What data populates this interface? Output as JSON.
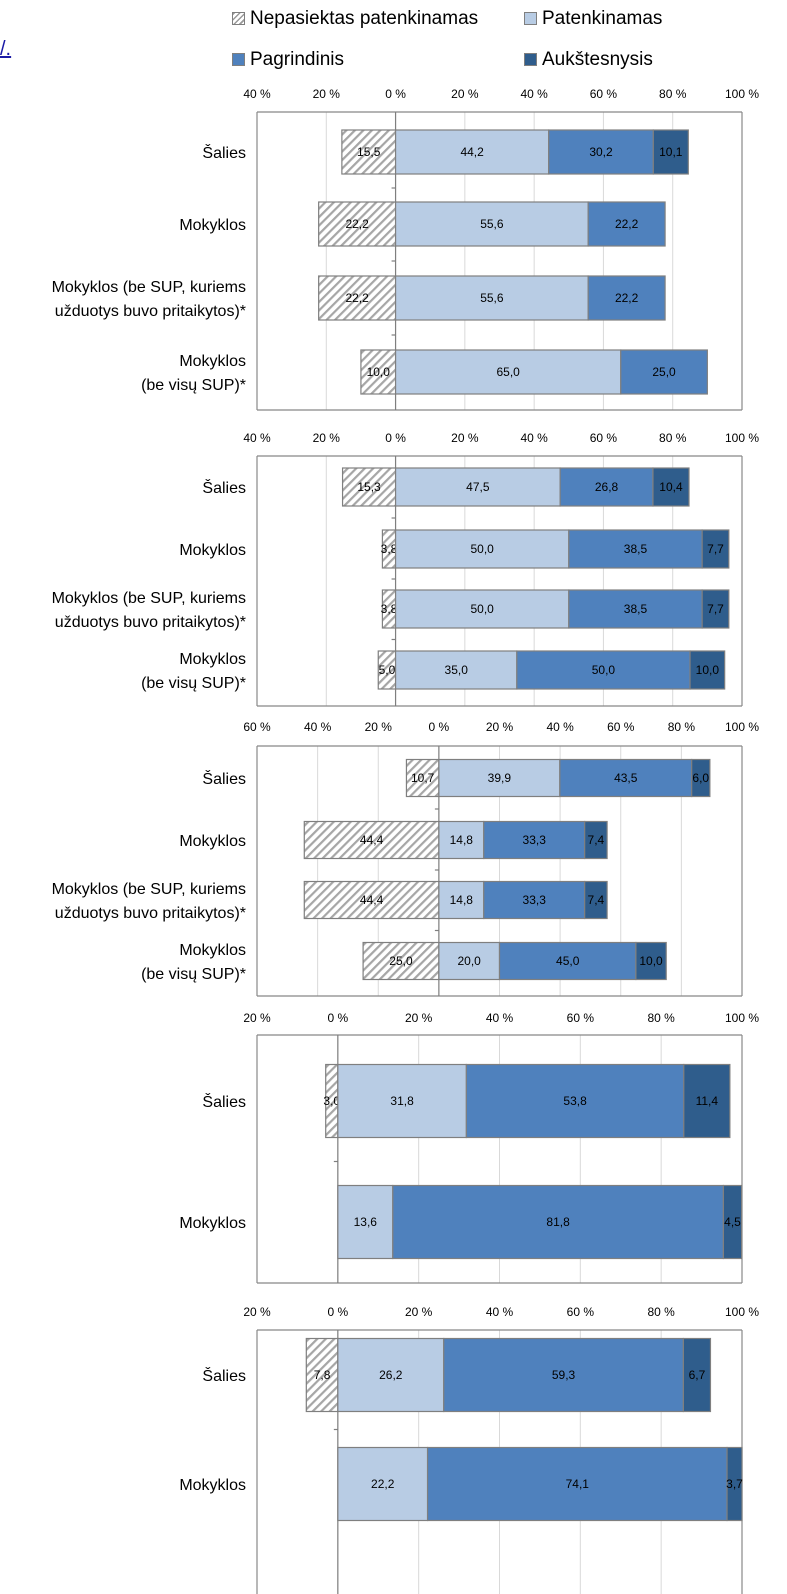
{
  "link_text": "/.",
  "legend": {
    "placement": "top",
    "items": [
      {
        "key": "nep",
        "label": "Nepasiektas patenkinamas",
        "color": "hatched"
      },
      {
        "key": "pat",
        "label": "Patenkinamas",
        "color": "#b8cce4"
      },
      {
        "key": "pag",
        "label": "Pagrindinis",
        "color": "#4f81bd"
      },
      {
        "key": "auk",
        "label": "Aukštesnysis",
        "color": "#2f5d8c"
      }
    ]
  },
  "chart_data": [
    {
      "type": "bar",
      "orientation": "horizontal-stacked-diverging",
      "xlim": [
        -40,
        100
      ],
      "xticks": [
        -40,
        -20,
        0,
        20,
        40,
        60,
        80,
        100
      ],
      "tick_labels": [
        "40 %",
        "20 %",
        "0 %",
        "20 %",
        "40 %",
        "60 %",
        "80 %",
        "100 %"
      ],
      "grid": true,
      "categories": [
        [
          "Šalies"
        ],
        [
          "Mokyklos"
        ],
        [
          "Mokyklos (be SUP, kuriems",
          "užduotys buvo pritaikytos)*"
        ],
        [
          "Mokyklos",
          "(be visų SUP)*"
        ]
      ],
      "series": [
        {
          "name": "Nepasiektas patenkinamas",
          "values": [
            15.5,
            22.2,
            22.2,
            10.0
          ],
          "labels": [
            "15,5",
            "22,2",
            "22,2",
            "10,0"
          ]
        },
        {
          "name": "Patenkinamas",
          "values": [
            44.2,
            55.6,
            55.6,
            65.0
          ],
          "labels": [
            "44,2",
            "55,6",
            "55,6",
            "65,0"
          ]
        },
        {
          "name": "Pagrindinis",
          "values": [
            30.2,
            22.2,
            22.2,
            25.0
          ],
          "labels": [
            "30,2",
            "22,2",
            "22,2",
            "25,0"
          ]
        },
        {
          "name": "Aukštesnysis",
          "values": [
            10.1,
            0,
            0,
            0
          ],
          "labels": [
            "10,1",
            "",
            "",
            ""
          ]
        }
      ]
    },
    {
      "type": "bar",
      "orientation": "horizontal-stacked-diverging",
      "xlim": [
        -40,
        100
      ],
      "xticks": [
        -40,
        -20,
        0,
        20,
        40,
        60,
        80,
        100
      ],
      "tick_labels": [
        "40 %",
        "20 %",
        "0 %",
        "20 %",
        "40 %",
        "60 %",
        "80 %",
        "100 %"
      ],
      "grid": true,
      "categories": [
        [
          "Šalies"
        ],
        [
          "Mokyklos"
        ],
        [
          "Mokyklos (be SUP, kuriems",
          "užduotys buvo pritaikytos)*"
        ],
        [
          "Mokyklos",
          "(be visų SUP)*"
        ]
      ],
      "series": [
        {
          "name": "Nepasiektas patenkinamas",
          "values": [
            15.3,
            3.8,
            3.8,
            5.0
          ],
          "labels": [
            "15,3",
            "3,8",
            "3,8",
            "5,0"
          ]
        },
        {
          "name": "Patenkinamas",
          "values": [
            47.5,
            50.0,
            50.0,
            35.0
          ],
          "labels": [
            "47,5",
            "50,0",
            "50,0",
            "35,0"
          ]
        },
        {
          "name": "Pagrindinis",
          "values": [
            26.8,
            38.5,
            38.5,
            50.0
          ],
          "labels": [
            "26,8",
            "38,5",
            "38,5",
            "50,0"
          ]
        },
        {
          "name": "Aukštesnysis",
          "values": [
            10.4,
            7.7,
            7.7,
            10.0
          ],
          "labels": [
            "10,4",
            "7,7",
            "7,7",
            "10,0"
          ]
        }
      ]
    },
    {
      "type": "bar",
      "orientation": "horizontal-stacked-diverging",
      "xlim": [
        -60,
        100
      ],
      "xticks": [
        -60,
        -40,
        -20,
        0,
        20,
        40,
        60,
        80,
        100
      ],
      "tick_labels": [
        "60 %",
        "40 %",
        "20 %",
        "0 %",
        "20 %",
        "40 %",
        "60 %",
        "80 %",
        "100 %"
      ],
      "grid": true,
      "categories": [
        [
          "Šalies"
        ],
        [
          "Mokyklos"
        ],
        [
          "Mokyklos (be SUP, kuriems",
          "užduotys buvo pritaikytos)*"
        ],
        [
          "Mokyklos",
          "(be visų SUP)*"
        ]
      ],
      "series": [
        {
          "name": "Nepasiektas patenkinamas",
          "values": [
            10.7,
            44.4,
            44.4,
            25.0
          ],
          "labels": [
            "10,7",
            "44,4",
            "44,4",
            "25,0"
          ]
        },
        {
          "name": "Patenkinamas",
          "values": [
            39.9,
            14.8,
            14.8,
            20.0
          ],
          "labels": [
            "39,9",
            "14,8",
            "14,8",
            "20,0"
          ]
        },
        {
          "name": "Pagrindinis",
          "values": [
            43.5,
            33.3,
            33.3,
            45.0
          ],
          "labels": [
            "43,5",
            "33,3",
            "33,3",
            "45,0"
          ]
        },
        {
          "name": "Aukštesnysis",
          "values": [
            6.0,
            7.4,
            7.4,
            10.0
          ],
          "labels": [
            "6,0",
            "7,4",
            "7,4",
            "10,0"
          ]
        }
      ]
    },
    {
      "type": "bar",
      "orientation": "horizontal-stacked-diverging",
      "xlim": [
        -20,
        100
      ],
      "xticks": [
        -20,
        0,
        20,
        40,
        60,
        80,
        100
      ],
      "tick_labels": [
        "20 %",
        "0 %",
        "20 %",
        "40 %",
        "60 %",
        "80 %",
        "100 %"
      ],
      "grid": true,
      "categories": [
        [
          "Šalies"
        ],
        [
          "Mokyklos"
        ]
      ],
      "series": [
        {
          "name": "Nepasiektas patenkinamas",
          "values": [
            3.0,
            0
          ],
          "labels": [
            "3,0",
            ""
          ]
        },
        {
          "name": "Patenkinamas",
          "values": [
            31.8,
            13.6
          ],
          "labels": [
            "31,8",
            "13,6"
          ]
        },
        {
          "name": "Pagrindinis",
          "values": [
            53.8,
            81.8
          ],
          "labels": [
            "53,8",
            "81,8"
          ]
        },
        {
          "name": "Aukštesnysis",
          "values": [
            11.4,
            4.5
          ],
          "labels": [
            "11,4",
            "4,5"
          ]
        }
      ]
    },
    {
      "type": "bar",
      "orientation": "horizontal-stacked-diverging",
      "xlim": [
        -20,
        100
      ],
      "xticks": [
        -20,
        0,
        20,
        40,
        60,
        80,
        100
      ],
      "tick_labels": [
        "20 %",
        "0 %",
        "20 %",
        "40 %",
        "60 %",
        "80 %",
        "100 %"
      ],
      "grid": true,
      "categories": [
        [
          "Šalies"
        ],
        [
          "Mokyklos"
        ]
      ],
      "series": [
        {
          "name": "Nepasiektas patenkinamas",
          "values": [
            7.8,
            0
          ],
          "labels": [
            "7,8",
            ""
          ]
        },
        {
          "name": "Patenkinamas",
          "values": [
            26.2,
            22.2
          ],
          "labels": [
            "26,2",
            "22,2"
          ]
        },
        {
          "name": "Pagrindinis",
          "values": [
            59.3,
            74.1
          ],
          "labels": [
            "59,3",
            "74,1"
          ]
        },
        {
          "name": "Aukštesnysis",
          "values": [
            6.7,
            3.7
          ],
          "labels": [
            "6,7",
            "3,7"
          ]
        }
      ]
    }
  ]
}
